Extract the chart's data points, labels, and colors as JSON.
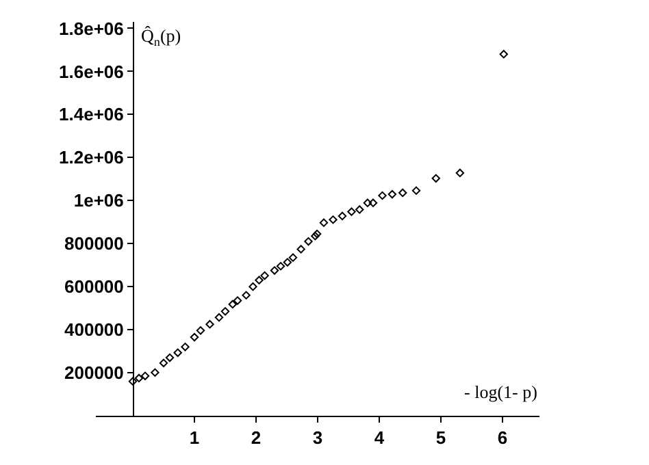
{
  "chart_data": {
    "type": "scatter",
    "xlabel": "- log(1- p)",
    "ylabel": "Q̂$_{n}$(p)",
    "x": [
      0,
      0.1,
      0.2,
      0.36,
      0.5,
      0.6,
      0.73,
      0.85,
      1.0,
      1.1,
      1.25,
      1.4,
      1.5,
      1.62,
      1.7,
      1.84,
      1.95,
      2.05,
      2.14,
      2.3,
      2.4,
      2.51,
      2.6,
      2.73,
      2.85,
      2.96,
      2.99,
      3.1,
      3.25,
      3.4,
      3.55,
      3.68,
      3.81,
      3.9,
      4.05,
      4.21,
      4.38,
      4.6,
      4.92,
      5.31,
      6.02
    ],
    "values": [
      160000,
      175000,
      185000,
      201000,
      245000,
      270000,
      293000,
      320000,
      365000,
      396000,
      425000,
      457000,
      485000,
      518000,
      535000,
      560000,
      600000,
      630000,
      651000,
      675000,
      695000,
      713000,
      735000,
      774000,
      810000,
      835000,
      845000,
      897000,
      911000,
      928000,
      948000,
      958000,
      989000,
      989000,
      1023000,
      1029000,
      1036000,
      1046000,
      1103000,
      1128000,
      1680000
    ],
    "color": "#000000",
    "marker": "diamond",
    "xlim": [
      -0.6,
      6.6
    ],
    "ylim": [
      0,
      1830000
    ],
    "xticks": [
      1,
      2,
      3,
      4,
      5,
      6
    ],
    "yticks": [
      200000,
      400000,
      600000,
      800000,
      {
        "value": 1000000,
        "label": "1e+06"
      },
      {
        "value": 1200000,
        "label": "1.2e+06"
      },
      {
        "value": 1400000,
        "label": "1.4e+06"
      },
      {
        "value": 1600000,
        "label": "1.6e+06"
      },
      {
        "value": 1800000,
        "label": "1.8e+06"
      }
    ],
    "line_style": "none"
  }
}
